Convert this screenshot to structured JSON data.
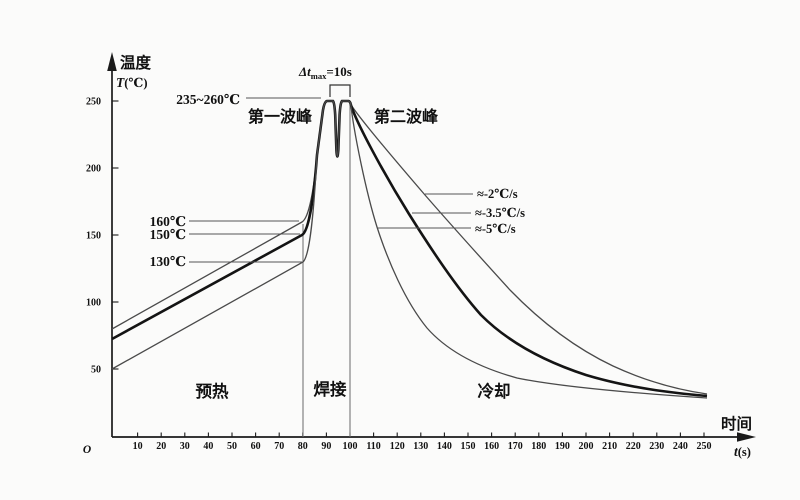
{
  "figure": {
    "y_axis": {
      "title_cn": "温度",
      "title_symbol": "T",
      "title_unit": "(℃)",
      "tick_labels": [
        "50",
        "100",
        "150",
        "200",
        "250"
      ]
    },
    "x_axis": {
      "title_cn": "时间",
      "title_symbol": "t",
      "title_unit": "(s)",
      "origin_label": "O",
      "tick_labels": [
        "10",
        "20",
        "30",
        "40",
        "50",
        "60",
        "70",
        "80",
        "90",
        "100",
        "110",
        "120",
        "130",
        "140",
        "150",
        "160",
        "170",
        "180",
        "190",
        "200",
        "210",
        "220",
        "230",
        "240",
        "250"
      ]
    },
    "annotations": {
      "peak_temperature_range": "235~260℃",
      "first_peak": "第一波峰",
      "second_peak": "第二波峰",
      "dt_max": {
        "prefix": "Δt",
        "subscript": "max",
        "suffix": "=10s"
      },
      "preheat_temps": {
        "t160": "160℃",
        "t150": "150℃",
        "t130": "130℃"
      },
      "cooling_rates": {
        "r2": "≈-2℃/s",
        "r35": "≈-3.5℃/s",
        "r5": "≈-5℃/s"
      }
    },
    "zones": {
      "preheat": "预热",
      "solder": "焊接",
      "cooling": "冷却"
    }
  },
  "chart_data": {
    "type": "line",
    "xlabel": "时间 t(s)",
    "ylabel": "温度 T(℃)",
    "xlim": [
      0,
      250
    ],
    "ylim": [
      0,
      260
    ],
    "x_ticks_step": 10,
    "y_ticks": [
      50,
      100,
      150,
      200,
      250
    ],
    "grid": false,
    "legend_position": "none",
    "zone_boundaries_s": [
      80,
      100
    ],
    "zones": [
      "预热",
      "焊接",
      "冷却"
    ],
    "peak_range_c": "235~260",
    "dt_max_s": 10,
    "series": [
      {
        "name": "160℃ preheat / ≈-2℃/s cooling",
        "style": "thin",
        "points": [
          [
            0,
            80
          ],
          [
            80,
            160
          ],
          [
            88,
            250
          ],
          [
            92,
            250
          ],
          [
            94,
            205
          ],
          [
            97,
            250
          ],
          [
            100,
            250
          ],
          [
            132,
            180
          ],
          [
            168,
            109
          ],
          [
            211,
            52
          ],
          [
            250,
            31
          ]
        ]
      },
      {
        "name": "150℃ preheat / ≈-3.5℃/s cooling",
        "style": "thick",
        "points": [
          [
            0,
            72
          ],
          [
            80,
            150
          ],
          [
            88,
            250
          ],
          [
            92,
            250
          ],
          [
            94,
            205
          ],
          [
            97,
            250
          ],
          [
            100,
            250
          ],
          [
            125,
            165
          ],
          [
            155,
            90
          ],
          [
            200,
            46
          ],
          [
            250,
            30
          ]
        ]
      },
      {
        "name": "130℃ preheat / ≈-5℃/s cooling",
        "style": "thin",
        "points": [
          [
            0,
            50
          ],
          [
            80,
            130
          ],
          [
            88,
            250
          ],
          [
            92,
            250
          ],
          [
            94,
            205
          ],
          [
            97,
            250
          ],
          [
            100,
            250
          ],
          [
            111,
            156
          ],
          [
            132,
            81
          ],
          [
            170,
            43
          ],
          [
            250,
            28
          ]
        ]
      }
    ]
  },
  "colors": {
    "background": "#fbfbfa",
    "axis": "#1a1a1a",
    "curve_thick": "#141414",
    "curve_thin": "#4a4a4a",
    "leader": "#555555"
  }
}
